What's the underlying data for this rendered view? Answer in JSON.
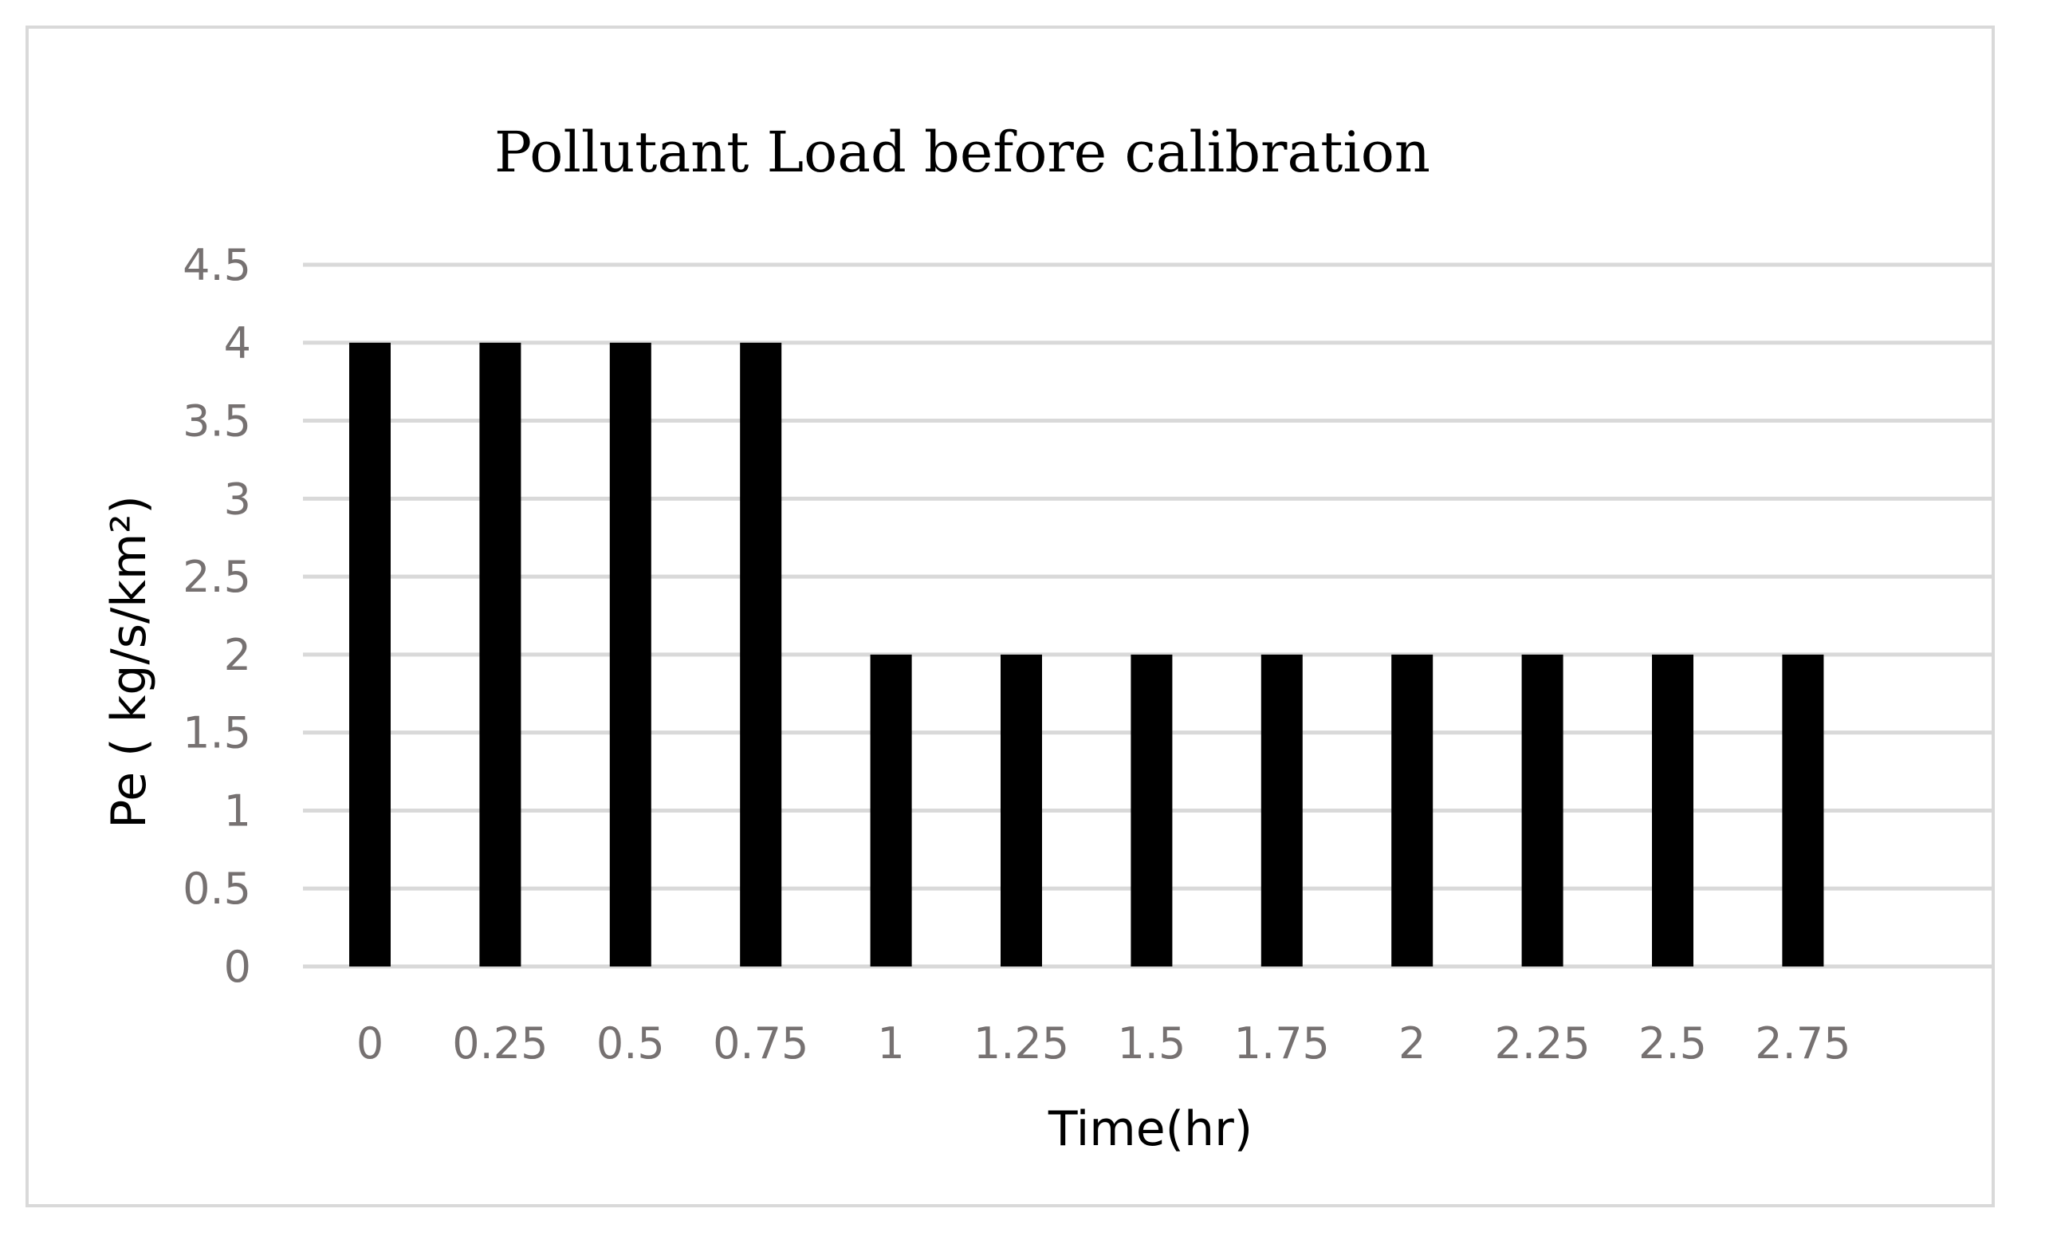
{
  "chart_data": {
    "type": "bar",
    "title": "Pollutant Load before calibration",
    "xlabel": "Time(hr)",
    "ylabel": "Pe ( kg/s/km²)",
    "categories": [
      "0",
      "0.25",
      "0.5",
      "0.75",
      "1",
      "1.25",
      "1.5",
      "1.75",
      "2",
      "2.25",
      "2.5",
      "2.75"
    ],
    "values": [
      4,
      4,
      4,
      4,
      2,
      2,
      2,
      2,
      2,
      2,
      2,
      2
    ],
    "ylim": [
      0,
      4.5
    ],
    "yticks": [
      "0",
      "0.5",
      "1",
      "1.5",
      "2",
      "2.5",
      "3",
      "3.5",
      "4",
      "4.5"
    ],
    "grid": true,
    "legend": "none",
    "bar_color": "#000000",
    "grid_color": "#d9d9d9",
    "tick_color": "#767171"
  }
}
